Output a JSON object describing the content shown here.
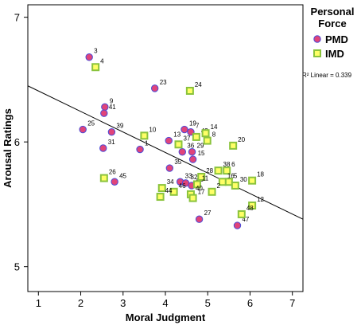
{
  "chart_data": {
    "type": "scatter",
    "xlabel": "Moral Judgment",
    "ylabel": "Arousal Ratings",
    "xlim": [
      0.75,
      7.25
    ],
    "ylim": [
      4.8,
      7.1
    ],
    "x_ticks": [
      1,
      2,
      3,
      4,
      5,
      6,
      7
    ],
    "y_ticks": [
      5,
      6,
      7
    ],
    "grid": false,
    "legend_title": "Personal Force",
    "legend_position": "right",
    "series": [
      {
        "name": "PMD",
        "marker": "circle",
        "color": "#e0447a",
        "edge_color": "#4a4ad8",
        "points": [
          {
            "label": "3",
            "x": 2.2,
            "y": 6.68
          },
          {
            "label": "9",
            "x": 2.57,
            "y": 6.28
          },
          {
            "label": "41",
            "x": 2.55,
            "y": 6.23
          },
          {
            "label": "25",
            "x": 2.05,
            "y": 6.1
          },
          {
            "label": "39",
            "x": 2.73,
            "y": 6.08
          },
          {
            "label": "31",
            "x": 2.53,
            "y": 5.95
          },
          {
            "label": "45",
            "x": 2.8,
            "y": 5.68
          },
          {
            "label": "1",
            "x": 3.4,
            "y": 5.94
          },
          {
            "label": "23",
            "x": 3.75,
            "y": 6.43
          },
          {
            "label": "13",
            "x": 4.08,
            "y": 6.01
          },
          {
            "label": "19",
            "x": 4.45,
            "y": 6.1
          },
          {
            "label": "7",
            "x": 4.6,
            "y": 6.08
          },
          {
            "label": "36",
            "x": 4.4,
            "y": 5.92
          },
          {
            "label": "29",
            "x": 4.63,
            "y": 5.92
          },
          {
            "label": "35",
            "x": 4.1,
            "y": 5.79
          },
          {
            "label": "33",
            "x": 4.35,
            "y": 5.68
          },
          {
            "label": "32",
            "x": 4.48,
            "y": 5.67
          },
          {
            "label": "43",
            "x": 4.62,
            "y": 5.65
          },
          {
            "label": "27",
            "x": 4.8,
            "y": 5.38
          },
          {
            "label": "47",
            "x": 5.7,
            "y": 5.33
          },
          {
            "label": "15",
            "x": 4.65,
            "y": 5.86
          }
        ]
      },
      {
        "name": "IMD",
        "marker": "square",
        "color": "#8ac33c",
        "edge_color": "#3a6a10",
        "points": [
          {
            "label": "4",
            "x": 2.35,
            "y": 6.6
          },
          {
            "label": "24",
            "x": 4.58,
            "y": 6.41
          },
          {
            "label": "10",
            "x": 3.5,
            "y": 6.05
          },
          {
            "label": "42",
            "x": 4.73,
            "y": 6.04
          },
          {
            "label": "37",
            "x": 4.31,
            "y": 5.98
          },
          {
            "label": "14",
            "x": 4.95,
            "y": 6.07
          },
          {
            "label": "8",
            "x": 4.99,
            "y": 6.01
          },
          {
            "label": "20",
            "x": 5.6,
            "y": 5.97
          },
          {
            "label": "38",
            "x": 5.25,
            "y": 5.77
          },
          {
            "label": "6",
            "x": 5.45,
            "y": 5.77
          },
          {
            "label": "28",
            "x": 4.85,
            "y": 5.72
          },
          {
            "label": "11",
            "x": 4.75,
            "y": 5.66
          },
          {
            "label": "16",
            "x": 5.35,
            "y": 5.68
          },
          {
            "label": "5",
            "x": 5.5,
            "y": 5.68
          },
          {
            "label": "30",
            "x": 5.65,
            "y": 5.65
          },
          {
            "label": "18",
            "x": 6.05,
            "y": 5.69
          },
          {
            "label": "26",
            "x": 2.55,
            "y": 5.71
          },
          {
            "label": "34",
            "x": 3.92,
            "y": 5.63
          },
          {
            "label": "46",
            "x": 4.2,
            "y": 5.6
          },
          {
            "label": "40",
            "x": 4.6,
            "y": 5.58
          },
          {
            "label": "44",
            "x": 3.88,
            "y": 5.56
          },
          {
            "label": "2",
            "x": 5.1,
            "y": 5.6
          },
          {
            "label": "17",
            "x": 4.65,
            "y": 5.55
          },
          {
            "label": "12",
            "x": 6.05,
            "y": 5.49
          },
          {
            "label": "48",
            "x": 5.8,
            "y": 5.42
          }
        ]
      }
    ],
    "fit_line": {
      "label": "R² Linear = 0.339",
      "x": [
        0.75,
        7.25
      ],
      "y": [
        6.45,
        5.38
      ]
    }
  }
}
